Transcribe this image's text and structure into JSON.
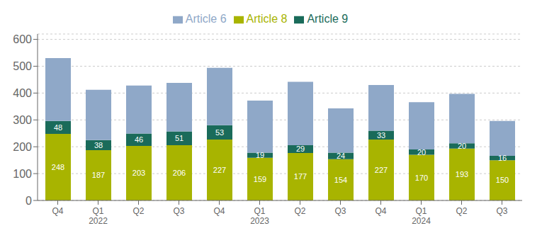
{
  "chart_data": {
    "type": "bar",
    "stacked": true,
    "grid": true,
    "legend": "top",
    "categories": [
      "Q4",
      "Q1\n2022",
      "Q2",
      "Q3",
      "Q4",
      "Q1\n2023",
      "Q2",
      "Q3",
      "Q4",
      "Q1\n2024",
      "Q2",
      "Q3"
    ],
    "series": [
      {
        "name": "Article 8",
        "color": "#a8b400",
        "data_labels": true,
        "values": [
          248,
          187,
          203,
          206,
          227,
          159,
          177,
          154,
          227,
          170,
          193,
          150
        ]
      },
      {
        "name": "Article 9",
        "color": "#1a6b5a",
        "data_labels": true,
        "values": [
          48,
          38,
          46,
          51,
          53,
          19,
          29,
          24,
          33,
          20,
          20,
          16
        ]
      },
      {
        "name": "Article 6",
        "color": "#8fa8c8",
        "values": [
          234,
          187,
          179,
          181,
          214,
          194,
          236,
          165,
          170,
          176,
          184,
          130
        ]
      }
    ],
    "ylim": [
      0,
      620
    ],
    "yticks": [
      0,
      100,
      200,
      300,
      400,
      500,
      600
    ]
  }
}
